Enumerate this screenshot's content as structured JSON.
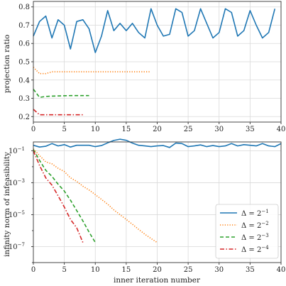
{
  "chart_data": [
    {
      "type": "line",
      "xlabel": "",
      "ylabel": "projection ratio",
      "xlim": [
        0,
        40
      ],
      "ylim": [
        0.17,
        0.83
      ],
      "xticks": [
        0,
        5,
        10,
        15,
        20,
        25,
        30,
        35,
        40
      ],
      "yticks": [
        0.2,
        0.3,
        0.4,
        0.5,
        0.6,
        0.7,
        0.8
      ],
      "yticklabels": [
        "0.2",
        "0.3",
        "0.4",
        "0.5",
        "0.6",
        "0.7",
        "0.8"
      ],
      "grid": true,
      "series": [
        {
          "color": "#1f77b4",
          "dash": "solid",
          "x": [
            0,
            1,
            2,
            3,
            4,
            5,
            6,
            7,
            8,
            9,
            10,
            11,
            12,
            13,
            14,
            15,
            16,
            17,
            18,
            19,
            20,
            21,
            22,
            23,
            24,
            25,
            26,
            27,
            28,
            29,
            30,
            31,
            32,
            33,
            34,
            35,
            36,
            37,
            38,
            39
          ],
          "values": [
            0.64,
            0.72,
            0.75,
            0.63,
            0.73,
            0.7,
            0.57,
            0.72,
            0.73,
            0.68,
            0.55,
            0.64,
            0.78,
            0.67,
            0.71,
            0.67,
            0.71,
            0.66,
            0.63,
            0.79,
            0.7,
            0.64,
            0.65,
            0.79,
            0.77,
            0.64,
            0.67,
            0.79,
            0.71,
            0.63,
            0.66,
            0.79,
            0.77,
            0.64,
            0.67,
            0.78,
            0.7,
            0.63,
            0.66,
            0.79
          ]
        },
        {
          "color": "#ff7f0e",
          "dash": "dotted",
          "x": [
            0,
            1,
            2,
            3,
            4,
            5,
            6,
            7,
            8,
            9,
            10,
            11,
            12,
            13,
            14,
            15,
            16,
            17,
            18,
            19
          ],
          "values": [
            0.47,
            0.435,
            0.435,
            0.445,
            0.445,
            0.445,
            0.445,
            0.445,
            0.445,
            0.445,
            0.445,
            0.445,
            0.445,
            0.445,
            0.445,
            0.445,
            0.445,
            0.445,
            0.445,
            0.445
          ]
        },
        {
          "color": "#2ca02c",
          "dash": "dashed",
          "x": [
            0,
            1,
            2,
            3,
            4,
            5,
            6,
            7,
            8,
            9
          ],
          "values": [
            0.35,
            0.305,
            0.31,
            0.312,
            0.313,
            0.314,
            0.315,
            0.315,
            0.315,
            0.315
          ]
        },
        {
          "color": "#d62728",
          "dash": "dashdot",
          "x": [
            0,
            1,
            2,
            3,
            4,
            5,
            6,
            7,
            8
          ],
          "values": [
            0.24,
            0.21,
            0.21,
            0.21,
            0.21,
            0.21,
            0.21,
            0.21,
            0.21
          ]
        }
      ]
    },
    {
      "type": "line",
      "xlabel": "inner iteration number",
      "ylabel": "infinity norm of infeasibility",
      "yscale": "log",
      "xlim": [
        0,
        40
      ],
      "ylim_exp": [
        -8,
        -0.45
      ],
      "xticks": [
        0,
        5,
        10,
        15,
        20,
        25,
        30,
        35,
        40
      ],
      "ytick_exps": [
        -1,
        -3,
        -5,
        -7
      ],
      "minor_ytick_exps": [
        -2,
        -4,
        -6,
        -8
      ],
      "grid": true,
      "legend": "bottom-right",
      "series": [
        {
          "name_base": "Δ = 2",
          "name_exp": "−1",
          "color": "#1f77b4",
          "dash": "solid",
          "x": [
            0,
            1,
            2,
            3,
            4,
            5,
            6,
            7,
            8,
            9,
            10,
            11,
            12,
            13,
            14,
            15,
            16,
            17,
            18,
            19,
            20,
            21,
            22,
            23,
            24,
            25,
            26,
            27,
            28,
            29,
            30,
            31,
            32,
            33,
            34,
            35,
            36,
            37,
            38,
            39,
            40
          ],
          "values": [
            0.22,
            0.17,
            0.19,
            0.28,
            0.2,
            0.24,
            0.17,
            0.22,
            0.22,
            0.22,
            0.18,
            0.21,
            0.31,
            0.44,
            0.53,
            0.45,
            0.3,
            0.22,
            0.2,
            0.18,
            0.2,
            0.21,
            0.16,
            0.3,
            0.28,
            0.18,
            0.2,
            0.23,
            0.18,
            0.21,
            0.18,
            0.2,
            0.28,
            0.2,
            0.24,
            0.22,
            0.2,
            0.28,
            0.2,
            0.18,
            0.28
          ]
        },
        {
          "name_base": "Δ = 2",
          "name_exp": "−2",
          "color": "#ff7f0e",
          "dash": "dotted",
          "x": [
            0,
            1,
            2,
            3,
            4,
            5,
            6,
            7,
            8,
            9,
            10,
            11,
            12,
            13,
            14,
            15,
            16,
            17,
            18,
            19,
            20
          ],
          "values": [
            0.13,
            0.05,
            0.02,
            0.015,
            0.008,
            0.005,
            0.002,
            0.0012,
            0.0006,
            0.00035,
            0.00018,
            9e-05,
            4.5e-05,
            2e-05,
            1e-05,
            5e-06,
            2.5e-06,
            1.2e-06,
            6e-07,
            3.2e-07,
            1.8e-07
          ]
        },
        {
          "name_base": "Δ = 2",
          "name_exp": "−3",
          "color": "#2ca02c",
          "dash": "dashed",
          "x": [
            0,
            1,
            2,
            3,
            4,
            5,
            6,
            7,
            8,
            9,
            10
          ],
          "values": [
            0.12,
            0.025,
            0.006,
            0.0025,
            0.0008,
            0.0003,
            8e-05,
            1.8e-05,
            4e-06,
            8e-07,
            1.8e-07
          ]
        },
        {
          "name_base": "Δ = 2",
          "name_exp": "−4",
          "color": "#d62728",
          "dash": "dashdot",
          "x": [
            0,
            1,
            2,
            3,
            4,
            5,
            6,
            7,
            8
          ],
          "values": [
            0.1,
            0.012,
            0.002,
            0.0007,
            0.00015,
            3e-05,
            5e-06,
            1.5e-06,
            1.8e-07
          ]
        }
      ]
    }
  ]
}
